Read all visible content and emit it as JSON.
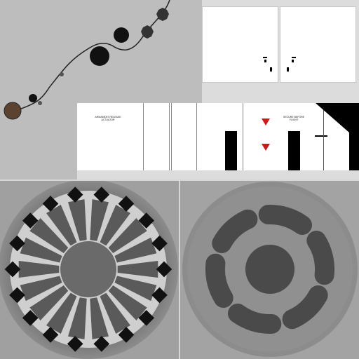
{
  "diagram": {
    "label_left_line1": "ARMAMENT RELEASE",
    "label_left_line2": "ACTUATOR",
    "label_right_line1": "SECURE BEFORE",
    "label_right_line2": "FLIGHT"
  },
  "colors": {
    "top_left_background": "#bdbdbd",
    "warning_triangle": "#cc1a1a",
    "disc_dark": "#4a4a4a",
    "panel_white": "#ffffff"
  },
  "icons": {
    "warning": "warning-triangle-icon"
  }
}
